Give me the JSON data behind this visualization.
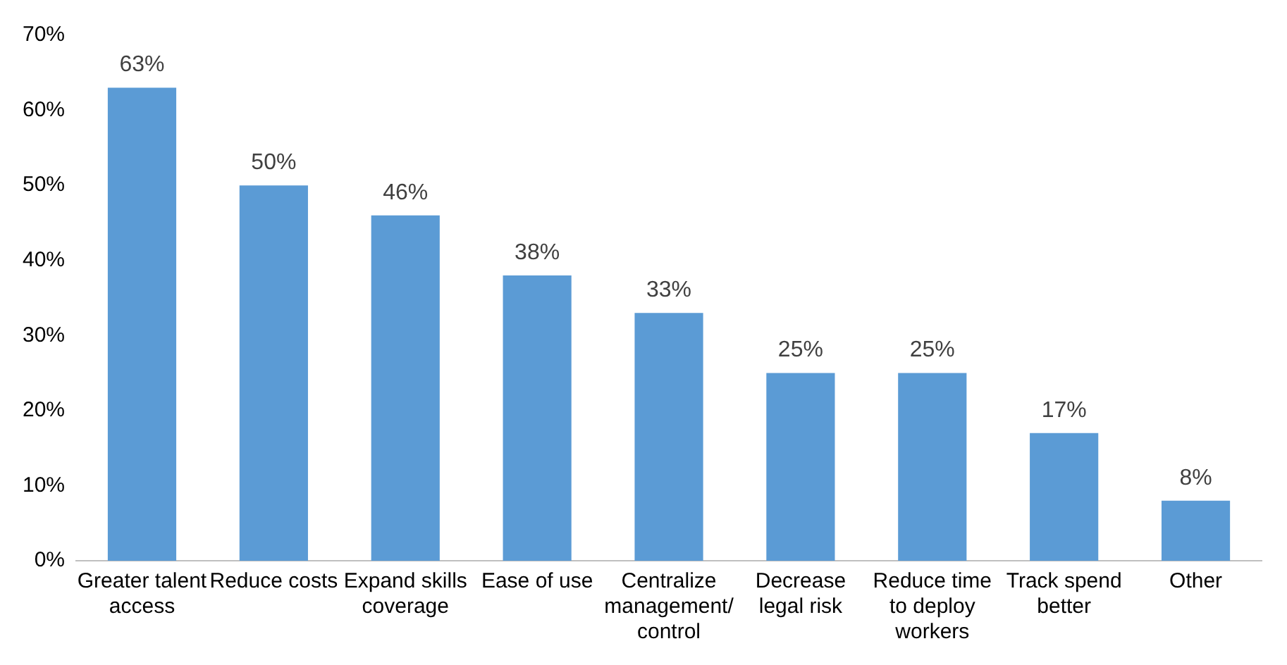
{
  "chart_data": {
    "type": "bar",
    "categories": [
      "Greater talent access",
      "Reduce costs",
      "Expand skills coverage",
      "Ease of use",
      "Centralize management/ control",
      "Decrease legal risk",
      "Reduce time to deploy workers",
      "Track spend better",
      "Other"
    ],
    "values": [
      63,
      50,
      46,
      38,
      33,
      25,
      25,
      17,
      8
    ],
    "value_labels": [
      "63%",
      "50%",
      "46%",
      "38%",
      "33%",
      "25%",
      "25%",
      "17%",
      "8%"
    ],
    "color": "#5b9bd5",
    "ylim": [
      0,
      70
    ],
    "yticks": [
      {
        "value": 0,
        "label": "0%"
      },
      {
        "value": 10,
        "label": "10%"
      },
      {
        "value": 20,
        "label": "20%"
      },
      {
        "value": 30,
        "label": "30%"
      },
      {
        "value": 40,
        "label": "40%"
      },
      {
        "value": 50,
        "label": "50%"
      },
      {
        "value": 60,
        "label": "60%"
      },
      {
        "value": 70,
        "label": "70%"
      }
    ],
    "grid": false,
    "legend": false
  }
}
